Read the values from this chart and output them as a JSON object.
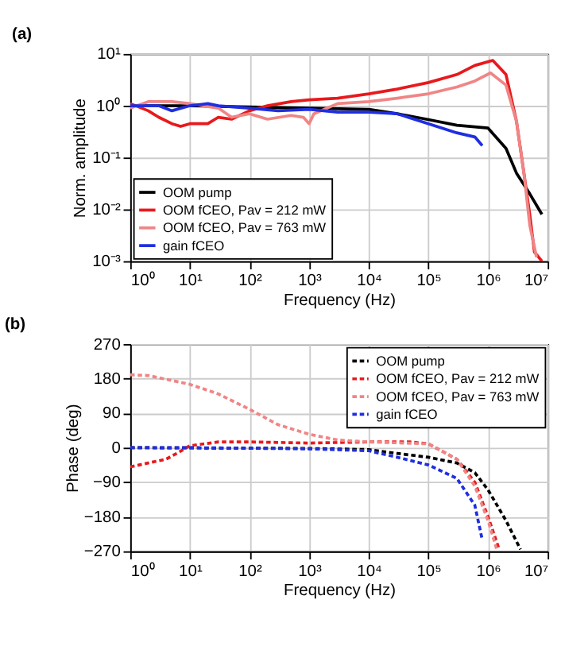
{
  "chart_data": [
    {
      "type": "line",
      "title": "(a)",
      "xlabel": "Frequency (Hz)",
      "ylabel": "Norm. amplitude",
      "log": "xy",
      "grid": true,
      "legend": "bottom left",
      "line_style": "solid",
      "xlim": [
        1,
        10000000
      ],
      "xticks": [
        {
          "value": 1,
          "label": "10⁰"
        },
        {
          "value": 10,
          "label": "10¹"
        },
        {
          "value": 100,
          "label": "10²"
        },
        {
          "value": 1000,
          "label": "10³"
        },
        {
          "value": 10000,
          "label": "10⁴"
        },
        {
          "value": 100000,
          "label": "10⁵"
        },
        {
          "value": 1000000,
          "label": "10⁶"
        },
        {
          "value": 10000000,
          "label": "10⁷"
        }
      ],
      "ylim": [
        0.001,
        10
      ],
      "yticks": [
        {
          "value": 0.001,
          "label": "10⁻³"
        },
        {
          "value": 0.01,
          "label": "10⁻²"
        },
        {
          "value": 0.1,
          "label": "10⁻¹"
        },
        {
          "value": 1,
          "label": "10⁰"
        },
        {
          "value": 10,
          "label": "10¹"
        }
      ],
      "series": [
        {
          "name": "OOM pump",
          "color": "#000000",
          "x": [
            1,
            10,
            100,
            1000,
            10000,
            30000,
            100000,
            300000,
            1000000,
            2000000,
            3000000,
            5000000,
            8000000
          ],
          "values": [
            1.0,
            1.0,
            0.95,
            0.9,
            0.85,
            0.7,
            0.54,
            0.42,
            0.37,
            0.15,
            0.05,
            0.02,
            0.008
          ]
        },
        {
          "name": "OOM fCEO, Pav = 212 mW",
          "color": "#e8191c",
          "x": [
            1,
            2,
            3,
            5,
            7,
            10,
            20,
            30,
            50,
            100,
            200,
            500,
            1000,
            3000,
            10000,
            30000,
            100000,
            300000,
            600000,
            1200000,
            2000000,
            3000000,
            4000000,
            5000000,
            6000000,
            8000000
          ],
          "values": [
            1.1,
            0.8,
            0.6,
            0.45,
            0.4,
            0.45,
            0.45,
            0.6,
            0.55,
            0.8,
            1.0,
            1.2,
            1.3,
            1.4,
            1.7,
            2.1,
            2.8,
            4.0,
            6.0,
            7.5,
            4.0,
            0.5,
            0.05,
            0.008,
            0.0015,
            0.001
          ]
        },
        {
          "name": "OOM fCEO, Pav = 763 mW",
          "color": "#f08585",
          "x": [
            1,
            2,
            5,
            10,
            30,
            50,
            100,
            200,
            500,
            800,
            1000,
            1200,
            3000,
            10000,
            30000,
            100000,
            300000,
            600000,
            1100000,
            2000000,
            3000000,
            4000000,
            5000000,
            6500000
          ],
          "values": [
            0.9,
            1.2,
            1.2,
            1.1,
            0.9,
            0.6,
            0.7,
            0.55,
            0.65,
            0.6,
            0.45,
            0.7,
            1.1,
            1.2,
            1.4,
            1.7,
            2.3,
            3.0,
            4.3,
            2.5,
            0.5,
            0.05,
            0.005,
            0.0012
          ]
        },
        {
          "name": "gain fCEO",
          "color": "#1f2ee0",
          "x": [
            1,
            3,
            5,
            10,
            20,
            30,
            100,
            300,
            1000,
            3000,
            10000,
            30000,
            100000,
            300000,
            600000,
            800000
          ],
          "values": [
            1.0,
            1.0,
            0.8,
            1.0,
            1.1,
            1.0,
            0.9,
            0.8,
            0.85,
            0.75,
            0.75,
            0.7,
            0.45,
            0.3,
            0.25,
            0.17
          ]
        }
      ]
    },
    {
      "type": "line",
      "title": "(b)",
      "xlabel": "Frequency (Hz)",
      "ylabel": "Phase (deg)",
      "log": "x",
      "grid": true,
      "legend": "top right",
      "line_style": "dashed",
      "xlim": [
        1,
        10000000
      ],
      "xticks": [
        {
          "value": 1,
          "label": "10⁰"
        },
        {
          "value": 10,
          "label": "10¹"
        },
        {
          "value": 100,
          "label": "10²"
        },
        {
          "value": 1000,
          "label": "10³"
        },
        {
          "value": 10000,
          "label": "10⁴"
        },
        {
          "value": 100000,
          "label": "10⁵"
        },
        {
          "value": 1000000,
          "label": "10⁶"
        },
        {
          "value": 10000000,
          "label": "10⁷"
        }
      ],
      "ylim": [
        -270,
        270
      ],
      "yticks": [
        -270,
        -180,
        -90,
        0,
        90,
        180,
        270
      ],
      "series": [
        {
          "name": "OOM pump",
          "color": "#000000",
          "x": [
            1,
            1000,
            10000,
            30000,
            100000,
            300000,
            600000,
            1000000,
            2000000,
            3500000
          ],
          "values": [
            0,
            -2,
            -5,
            -15,
            -25,
            -40,
            -65,
            -110,
            -190,
            -265
          ]
        },
        {
          "name": "OOM fCEO, Pav = 212 mW",
          "color": "#e8191c",
          "x": [
            1,
            2,
            4,
            6,
            10,
            30,
            100,
            1000,
            10000,
            50000,
            100000,
            300000,
            600000,
            1000000,
            1500000
          ],
          "values": [
            -50,
            -40,
            -30,
            -15,
            5,
            15,
            15,
            12,
            15,
            15,
            10,
            -30,
            -90,
            -180,
            -260
          ]
        },
        {
          "name": "OOM fCEO, Pav = 763 mW",
          "color": "#f08585",
          "x": [
            1,
            2,
            5,
            10,
            30,
            100,
            300,
            1000,
            3000,
            10000,
            100000,
            300000,
            600000,
            1000000,
            1400000
          ],
          "values": [
            190,
            188,
            175,
            165,
            140,
            100,
            60,
            35,
            20,
            15,
            10,
            -30,
            -100,
            -190,
            -265
          ]
        },
        {
          "name": "gain fCEO",
          "color": "#1f2ee0",
          "x": [
            1,
            10,
            1000,
            10000,
            30000,
            100000,
            300000,
            600000,
            800000
          ],
          "values": [
            0,
            0,
            -3,
            -8,
            -25,
            -45,
            -80,
            -150,
            -240
          ]
        }
      ]
    }
  ]
}
